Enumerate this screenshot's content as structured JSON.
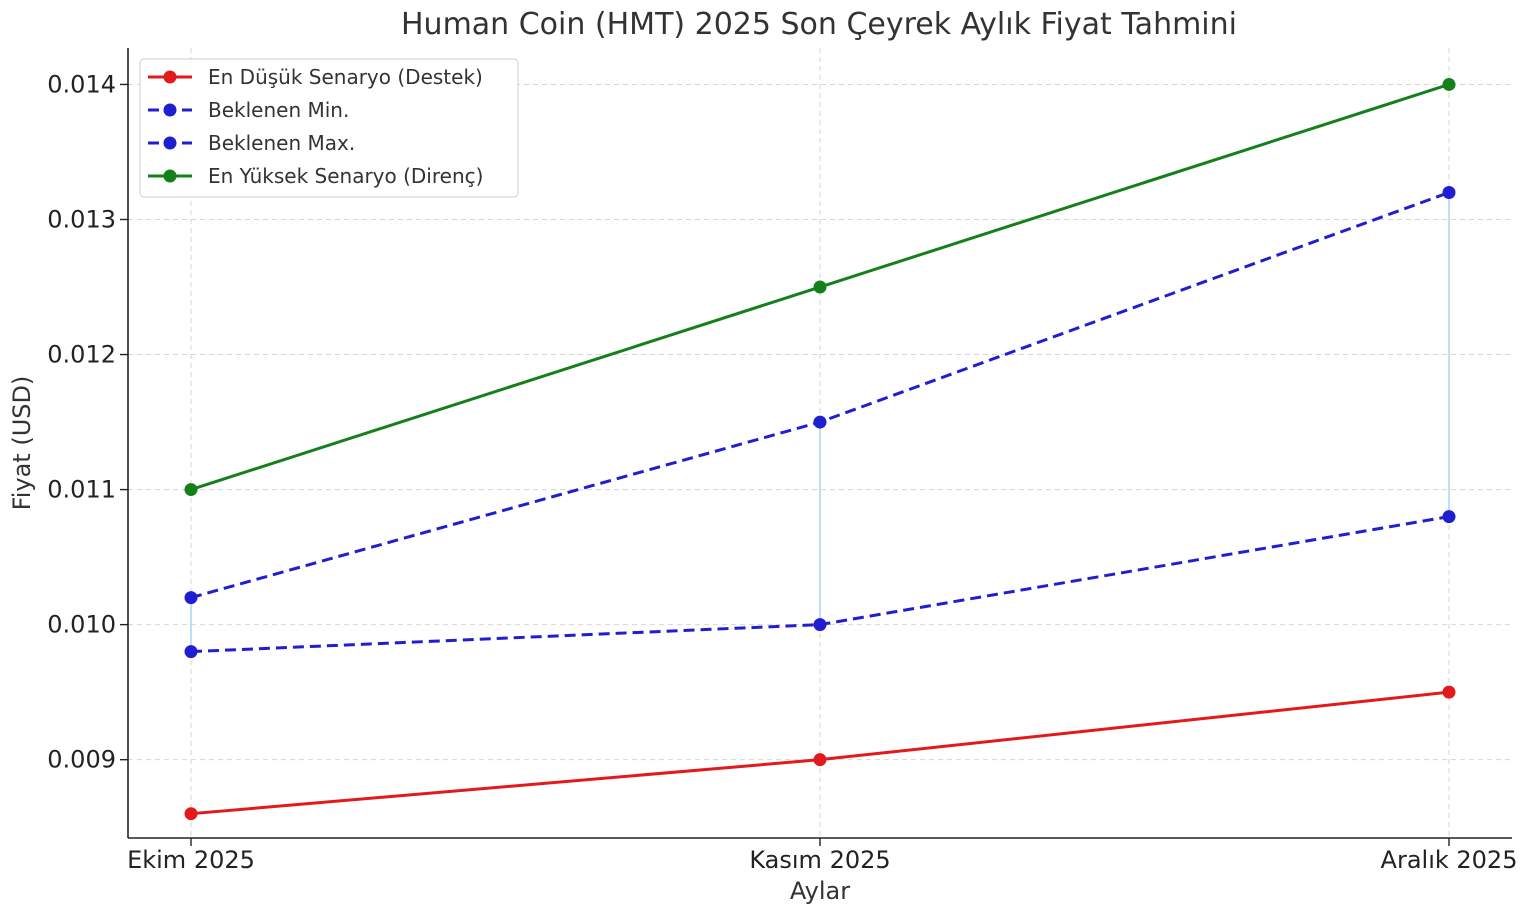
{
  "chart_data": {
    "type": "line",
    "title": "Human Coin (HMT) 2025 Son Çeyrek Aylık Fiyat Tahmini",
    "xlabel": "Aylar",
    "ylabel": "Fiyat (USD)",
    "categories": [
      "Ekim 2025",
      "Kasım 2025",
      "Aralık 2025"
    ],
    "ylim": [
      0.00842,
      0.01427
    ],
    "yticks": [
      0.009,
      0.01,
      0.011,
      0.012,
      0.013,
      0.014
    ],
    "ytick_labels": [
      "0.009",
      "0.010",
      "0.011",
      "0.012",
      "0.013",
      "0.014"
    ],
    "grid": true,
    "legend_position": "top-left",
    "range_connectors": true,
    "range_connector_color": "#a9d6ee",
    "series": [
      {
        "name": "En Düşük Senaryo (Destek)",
        "values": [
          0.0086,
          0.009,
          0.0095
        ],
        "color": "#e31a1c",
        "linestyle": "solid"
      },
      {
        "name": "Beklenen Min.",
        "values": [
          0.0098,
          0.01,
          0.0108
        ],
        "color": "#1f1fd1",
        "linestyle": "dashed"
      },
      {
        "name": "Beklenen Max.",
        "values": [
          0.0102,
          0.0115,
          0.0132
        ],
        "color": "#1f1fd1",
        "linestyle": "dashed"
      },
      {
        "name": "En Yüksek Senaryo (Direnç)",
        "values": [
          0.011,
          0.0125,
          0.014
        ],
        "color": "#15801a",
        "linestyle": "solid"
      }
    ]
  }
}
